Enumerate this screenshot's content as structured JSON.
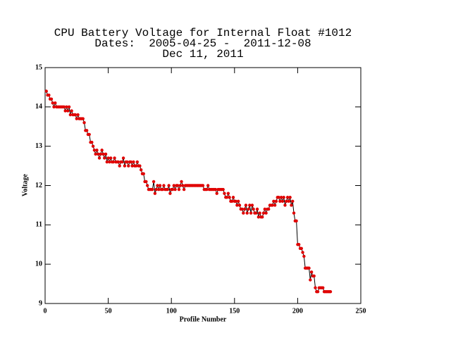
{
  "chart_data": {
    "type": "line",
    "title": [
      "CPU Battery Voltage for Internal Float #1012",
      "Dates:  2005-04-25 -  2011-12-08",
      "Dec 11, 2011"
    ],
    "xlabel": "Profile Number",
    "ylabel": "Voltage",
    "xlim": [
      0,
      250
    ],
    "xticks": [
      0,
      50,
      100,
      150,
      200,
      250
    ],
    "ylim": [
      9,
      15
    ],
    "yticks": [
      9,
      10,
      11,
      12,
      13,
      14,
      15
    ],
    "line_color": "#000000",
    "marker_color": "#e00000",
    "x": [
      1,
      2,
      3,
      4,
      5,
      6,
      7,
      8,
      9,
      10,
      11,
      12,
      13,
      14,
      15,
      16,
      17,
      18,
      19,
      20,
      21,
      22,
      23,
      24,
      25,
      26,
      27,
      28,
      29,
      30,
      31,
      32,
      33,
      34,
      35,
      36,
      37,
      38,
      39,
      40,
      41,
      42,
      43,
      44,
      45,
      46,
      47,
      48,
      49,
      50,
      51,
      52,
      53,
      54,
      55,
      56,
      57,
      58,
      59,
      60,
      61,
      62,
      63,
      64,
      65,
      66,
      67,
      68,
      69,
      70,
      71,
      72,
      73,
      74,
      75,
      76,
      77,
      78,
      79,
      80,
      81,
      82,
      83,
      84,
      85,
      86,
      87,
      88,
      89,
      90,
      91,
      92,
      93,
      94,
      95,
      96,
      97,
      98,
      99,
      100,
      101,
      102,
      103,
      104,
      105,
      106,
      107,
      108,
      109,
      110,
      111,
      112,
      113,
      114,
      115,
      116,
      117,
      118,
      119,
      120,
      121,
      122,
      123,
      124,
      125,
      126,
      127,
      128,
      129,
      130,
      131,
      132,
      133,
      134,
      135,
      136,
      137,
      138,
      139,
      140,
      141,
      142,
      143,
      144,
      145,
      146,
      147,
      148,
      149,
      150,
      151,
      152,
      153,
      154,
      155,
      156,
      157,
      158,
      159,
      160,
      161,
      162,
      163,
      164,
      165,
      166,
      167,
      168,
      169,
      170,
      171,
      172,
      173,
      174,
      175,
      176,
      177,
      178,
      179,
      180,
      181,
      182,
      183,
      184,
      185,
      186,
      187,
      188,
      189,
      190,
      191,
      192,
      193,
      194,
      195,
      196,
      197,
      198,
      199,
      200,
      201,
      202,
      203,
      204,
      205,
      206,
      207,
      208,
      209,
      210,
      211,
      212,
      213,
      214,
      215,
      216,
      217,
      218,
      219,
      220,
      221,
      222,
      223,
      224,
      225,
      226
    ],
    "values": [
      14.4,
      14.3,
      14.3,
      14.2,
      14.2,
      14.1,
      14.0,
      14.1,
      14.0,
      14.0,
      14.0,
      14.0,
      14.0,
      14.0,
      14.0,
      13.9,
      14.0,
      13.9,
      14.0,
      13.8,
      13.9,
      13.8,
      13.8,
      13.8,
      13.7,
      13.8,
      13.7,
      13.7,
      13.7,
      13.7,
      13.6,
      13.4,
      13.4,
      13.3,
      13.3,
      13.1,
      13.1,
      13.0,
      12.9,
      12.8,
      12.9,
      12.8,
      12.7,
      12.8,
      12.9,
      12.8,
      12.7,
      12.8,
      12.6,
      12.7,
      12.6,
      12.7,
      12.6,
      12.6,
      12.7,
      12.6,
      12.6,
      12.6,
      12.5,
      12.6,
      12.6,
      12.7,
      12.5,
      12.6,
      12.6,
      12.5,
      12.6,
      12.6,
      12.5,
      12.6,
      12.5,
      12.5,
      12.6,
      12.5,
      12.5,
      12.4,
      12.3,
      12.3,
      12.1,
      12.1,
      12.0,
      11.9,
      11.9,
      11.9,
      11.9,
      12.1,
      11.8,
      11.9,
      12.0,
      11.9,
      12.0,
      11.9,
      11.9,
      12.0,
      11.9,
      11.9,
      11.9,
      12.0,
      11.8,
      11.9,
      11.9,
      12.0,
      11.9,
      12.0,
      12.0,
      11.9,
      12.0,
      12.1,
      12.0,
      11.9,
      12.0,
      12.0,
      12.0,
      12.0,
      12.0,
      12.0,
      12.0,
      12.0,
      12.0,
      12.0,
      12.0,
      12.0,
      12.0,
      12.0,
      12.0,
      11.9,
      11.9,
      11.9,
      12.0,
      11.9,
      11.9,
      11.9,
      11.9,
      11.9,
      11.9,
      11.8,
      11.9,
      11.9,
      11.9,
      11.9,
      11.9,
      11.8,
      11.7,
      11.7,
      11.8,
      11.7,
      11.6,
      11.6,
      11.7,
      11.6,
      11.6,
      11.5,
      11.6,
      11.5,
      11.4,
      11.4,
      11.3,
      11.4,
      11.5,
      11.3,
      11.4,
      11.5,
      11.3,
      11.5,
      11.4,
      11.3,
      11.3,
      11.4,
      11.2,
      11.3,
      11.2,
      11.2,
      11.3,
      11.4,
      11.3,
      11.4,
      11.4,
      11.5,
      11.5,
      11.5,
      11.6,
      11.5,
      11.6,
      11.7,
      11.7,
      11.6,
      11.7,
      11.6,
      11.7,
      11.5,
      11.6,
      11.7,
      11.6,
      11.7,
      11.5,
      11.6,
      11.3,
      11.1,
      11.1,
      10.5,
      10.5,
      10.4,
      10.4,
      10.3,
      10.2,
      9.9,
      9.9,
      9.9,
      9.9,
      9.6,
      9.8,
      9.7,
      9.7,
      9.4,
      9.3,
      9.3,
      9.4,
      9.4,
      9.4,
      9.4,
      9.3,
      9.3,
      9.3,
      9.3,
      9.3,
      9.3
    ]
  }
}
